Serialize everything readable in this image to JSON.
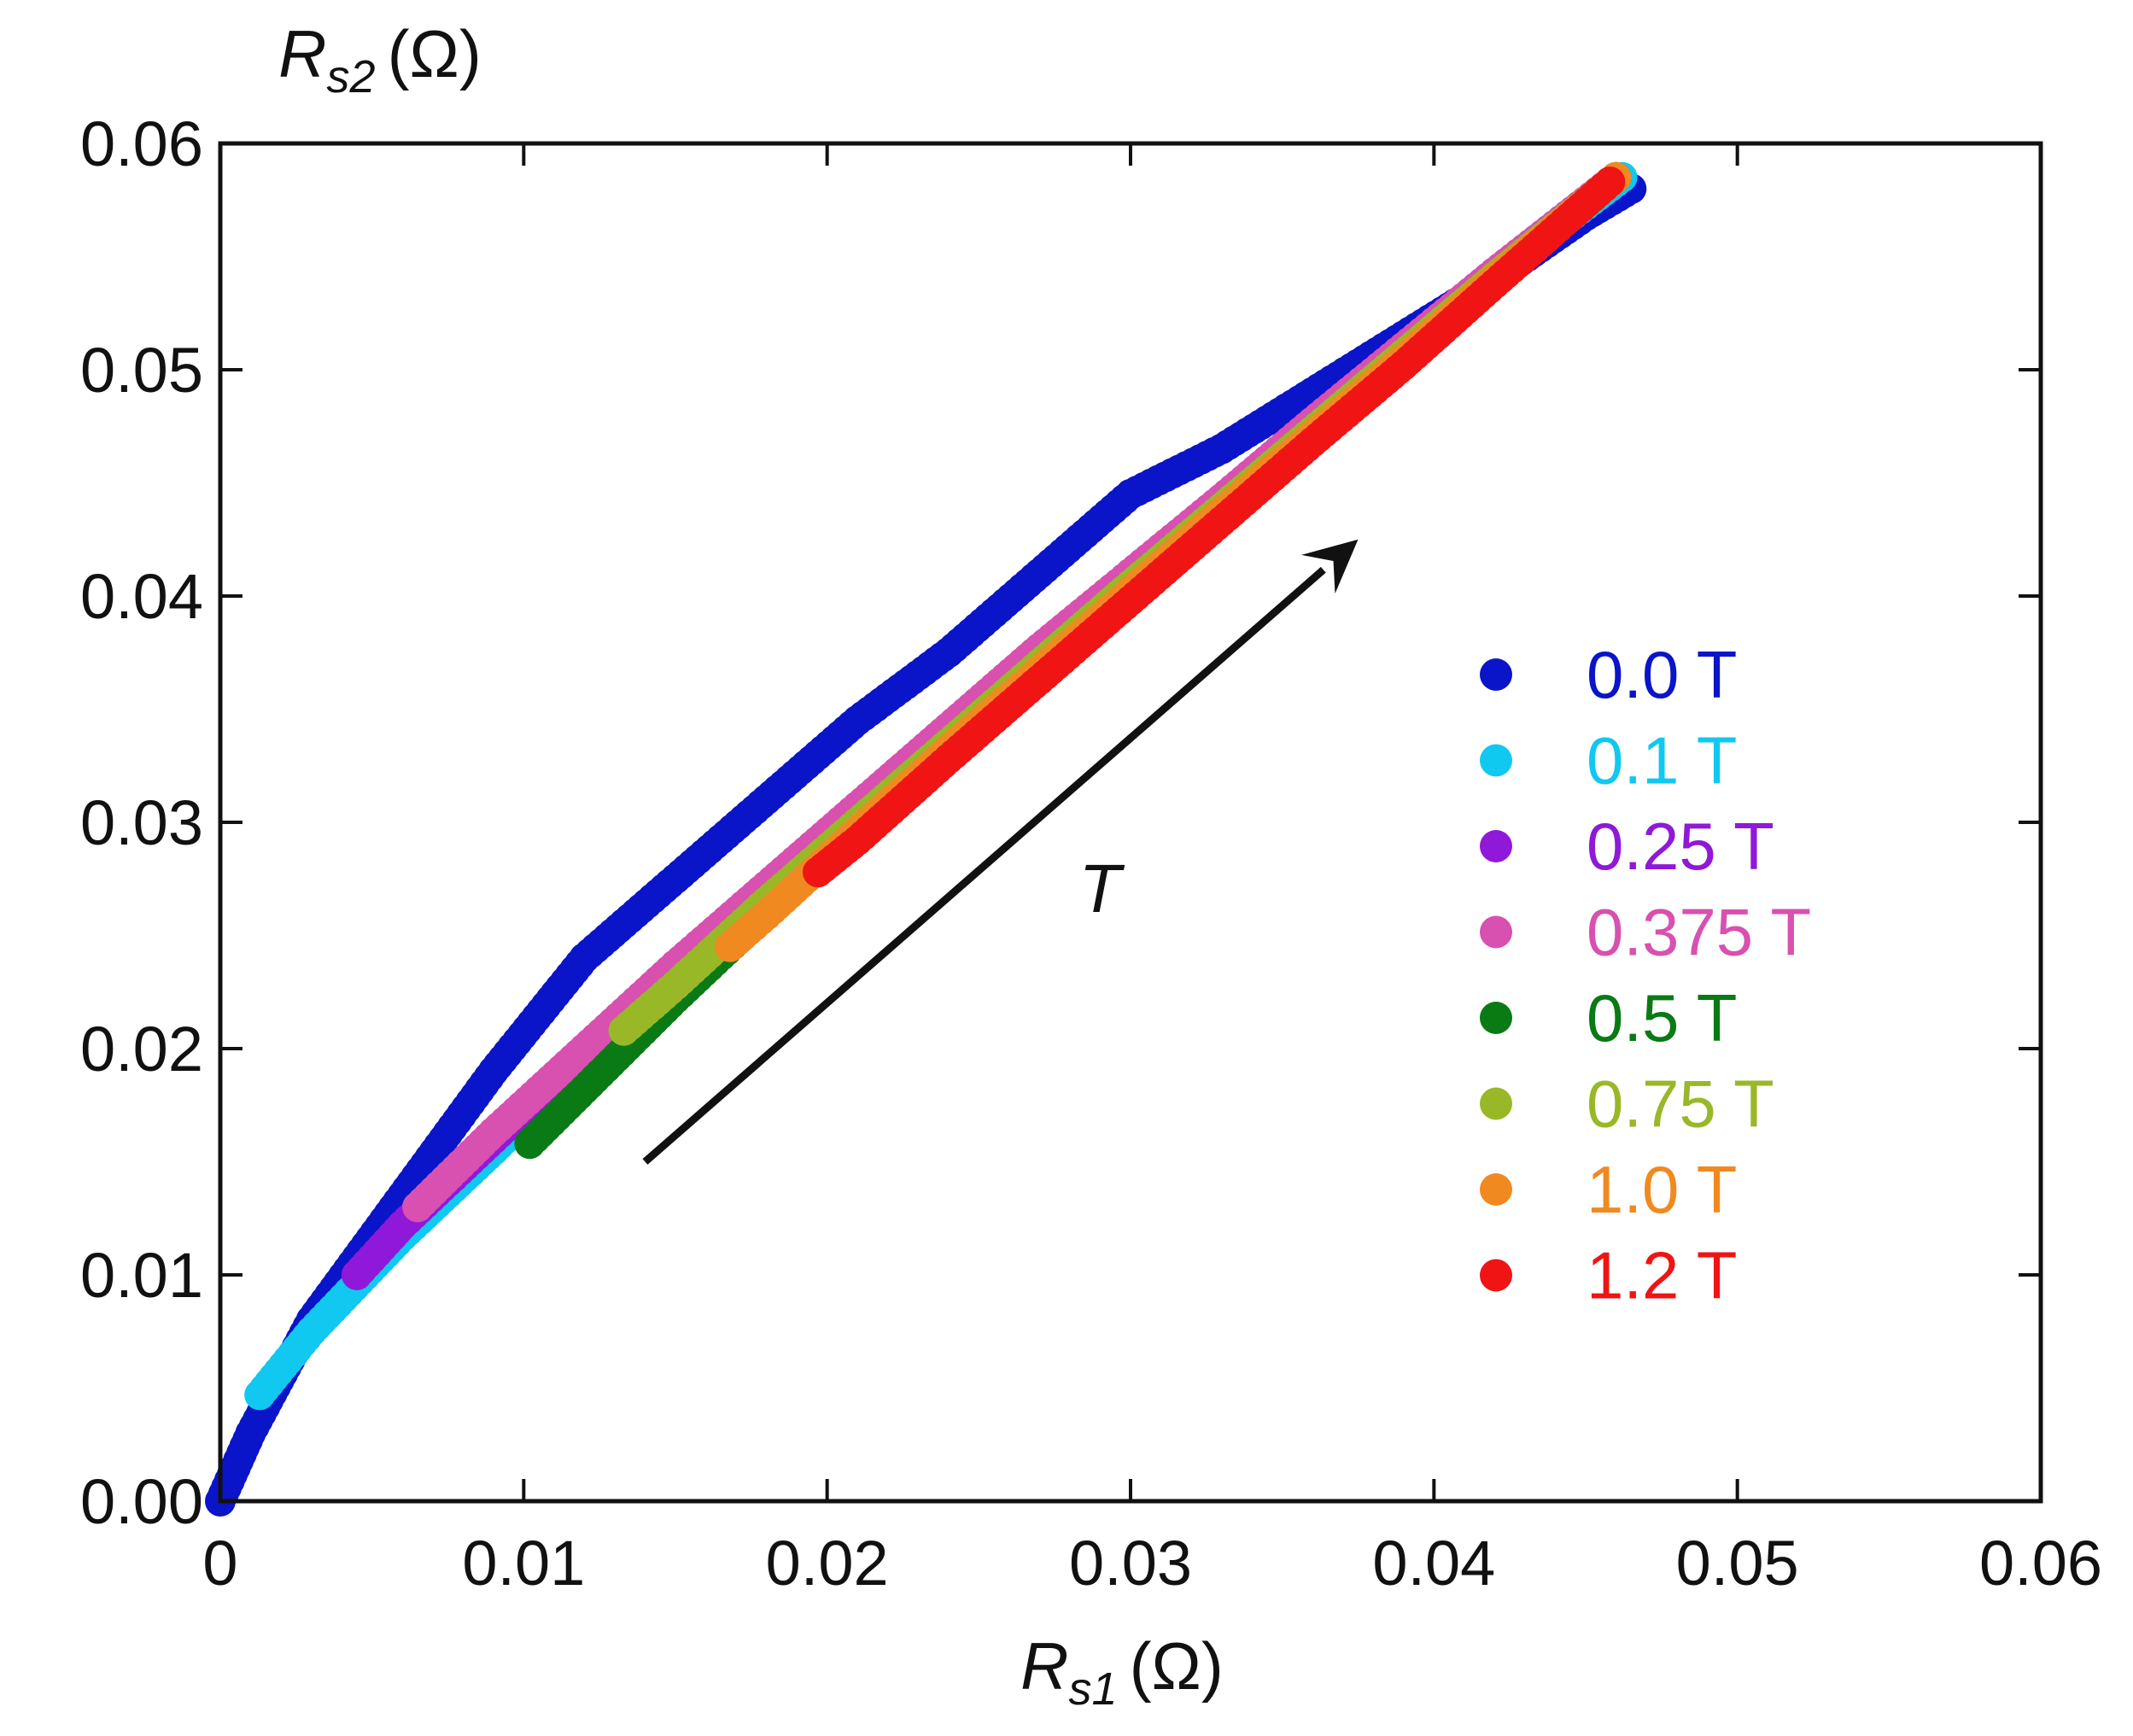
{
  "chart_data": {
    "type": "scatter",
    "title": "",
    "xlabel": {
      "symbol": "R",
      "subscript": "s1",
      "unit": "(Ω)"
    },
    "ylabel": {
      "symbol": "R",
      "subscript": "s2",
      "unit": "(Ω)"
    },
    "xlim": [
      0,
      0.06
    ],
    "ylim": [
      0,
      0.06
    ],
    "x_ticks": [
      0,
      0.01,
      0.02,
      0.03,
      0.04,
      0.05,
      0.06
    ],
    "x_tick_labels": [
      "0",
      "0.01",
      "0.02",
      "0.03",
      "0.04",
      "0.05",
      "0.06"
    ],
    "y_ticks": [
      0,
      0.01,
      0.02,
      0.03,
      0.04,
      0.05,
      0.06
    ],
    "y_tick_labels": [
      "0.00",
      "0.01",
      "0.02",
      "0.03",
      "0.04",
      "0.05",
      "0.06"
    ],
    "grid": false,
    "legend_position": "right",
    "annotation": {
      "text": "T",
      "arrow_from": [
        0.014,
        0.015
      ],
      "arrow_to": [
        0.0375,
        0.0425
      ]
    },
    "series": [
      {
        "name": "0.0 T",
        "color": "#0a14c8",
        "x_range": [
          0.0,
          0.0465
        ],
        "points": [
          [
            0.0,
            0.0
          ],
          [
            0.001,
            0.003
          ],
          [
            0.003,
            0.008
          ],
          [
            0.006,
            0.0135
          ],
          [
            0.009,
            0.019
          ],
          [
            0.012,
            0.024
          ],
          [
            0.015,
            0.0275
          ],
          [
            0.018,
            0.031
          ],
          [
            0.021,
            0.0345
          ],
          [
            0.024,
            0.0375
          ],
          [
            0.027,
            0.041
          ],
          [
            0.03,
            0.0445
          ],
          [
            0.033,
            0.0465
          ],
          [
            0.036,
            0.049
          ],
          [
            0.039,
            0.0515
          ],
          [
            0.042,
            0.054
          ],
          [
            0.045,
            0.0568
          ],
          [
            0.0465,
            0.058
          ]
        ]
      },
      {
        "name": "0.1 T",
        "color": "#10c8f0",
        "x_range": [
          0.0013,
          0.0462
        ],
        "points": [
          [
            0.0013,
            0.0047
          ],
          [
            0.003,
            0.0075
          ],
          [
            0.006,
            0.0117
          ],
          [
            0.009,
            0.0155
          ],
          [
            0.012,
            0.0195
          ],
          [
            0.015,
            0.023
          ],
          [
            0.018,
            0.0265
          ],
          [
            0.021,
            0.03
          ],
          [
            0.024,
            0.0335
          ],
          [
            0.027,
            0.037
          ],
          [
            0.03,
            0.0405
          ],
          [
            0.033,
            0.044
          ],
          [
            0.036,
            0.0475
          ],
          [
            0.039,
            0.051
          ],
          [
            0.042,
            0.0542
          ],
          [
            0.0462,
            0.0585
          ]
        ]
      },
      {
        "name": "0.25 T",
        "color": "#9018d8",
        "x_range": [
          0.0045,
          0.046
        ],
        "points": [
          [
            0.0045,
            0.01
          ],
          [
            0.006,
            0.0122
          ],
          [
            0.009,
            0.016
          ],
          [
            0.012,
            0.0198
          ],
          [
            0.015,
            0.0235
          ],
          [
            0.018,
            0.027
          ],
          [
            0.021,
            0.0305
          ],
          [
            0.024,
            0.034
          ],
          [
            0.027,
            0.0375
          ],
          [
            0.03,
            0.041
          ],
          [
            0.033,
            0.0443
          ],
          [
            0.036,
            0.0477
          ],
          [
            0.039,
            0.051
          ],
          [
            0.042,
            0.0543
          ],
          [
            0.046,
            0.0585
          ]
        ]
      },
      {
        "name": "0.375 T",
        "color": "#d850b0",
        "x_range": [
          0.0065,
          0.046
        ],
        "points": [
          [
            0.0065,
            0.013
          ],
          [
            0.009,
            0.0163
          ],
          [
            0.012,
            0.02
          ],
          [
            0.015,
            0.0237
          ],
          [
            0.018,
            0.0272
          ],
          [
            0.021,
            0.0307
          ],
          [
            0.024,
            0.0342
          ],
          [
            0.027,
            0.0377
          ],
          [
            0.03,
            0.041
          ],
          [
            0.033,
            0.0443
          ],
          [
            0.036,
            0.0477
          ],
          [
            0.039,
            0.051
          ],
          [
            0.042,
            0.0543
          ],
          [
            0.046,
            0.0585
          ]
        ]
      },
      {
        "name": "0.5 T",
        "color": "#0a7a14",
        "x_range": [
          0.0102,
          0.046
        ],
        "points": [
          [
            0.0102,
            0.0158
          ],
          [
            0.012,
            0.0182
          ],
          [
            0.015,
            0.0222
          ],
          [
            0.018,
            0.026
          ],
          [
            0.021,
            0.0297
          ],
          [
            0.024,
            0.0333
          ],
          [
            0.027,
            0.0368
          ],
          [
            0.03,
            0.0403
          ],
          [
            0.033,
            0.0438
          ],
          [
            0.036,
            0.0472
          ],
          [
            0.039,
            0.0506
          ],
          [
            0.042,
            0.054
          ],
          [
            0.046,
            0.0585
          ]
        ]
      },
      {
        "name": "0.75 T",
        "color": "#98b828",
        "x_range": [
          0.0133,
          0.046
        ],
        "points": [
          [
            0.0133,
            0.0208
          ],
          [
            0.015,
            0.0228
          ],
          [
            0.018,
            0.0265
          ],
          [
            0.021,
            0.03
          ],
          [
            0.024,
            0.0335
          ],
          [
            0.027,
            0.037
          ],
          [
            0.03,
            0.0405
          ],
          [
            0.033,
            0.0439
          ],
          [
            0.036,
            0.0473
          ],
          [
            0.039,
            0.0507
          ],
          [
            0.042,
            0.0541
          ],
          [
            0.046,
            0.0585
          ]
        ]
      },
      {
        "name": "1.0 T",
        "color": "#f08a20",
        "x_range": [
          0.0168,
          0.046
        ],
        "points": [
          [
            0.0168,
            0.0245
          ],
          [
            0.018,
            0.0259
          ],
          [
            0.021,
            0.0296
          ],
          [
            0.024,
            0.0332
          ],
          [
            0.027,
            0.0367
          ],
          [
            0.03,
            0.0402
          ],
          [
            0.033,
            0.0437
          ],
          [
            0.036,
            0.0471
          ],
          [
            0.039,
            0.0505
          ],
          [
            0.042,
            0.054
          ],
          [
            0.046,
            0.0585
          ]
        ]
      },
      {
        "name": "1.2 T",
        "color": "#f01414",
        "x_range": [
          0.0197,
          0.0458
        ],
        "points": [
          [
            0.0197,
            0.0278
          ],
          [
            0.021,
            0.0292
          ],
          [
            0.024,
            0.0328
          ],
          [
            0.027,
            0.0363
          ],
          [
            0.03,
            0.0398
          ],
          [
            0.033,
            0.0433
          ],
          [
            0.036,
            0.0468
          ],
          [
            0.039,
            0.0502
          ],
          [
            0.042,
            0.0538
          ],
          [
            0.0458,
            0.0583
          ]
        ]
      }
    ]
  }
}
